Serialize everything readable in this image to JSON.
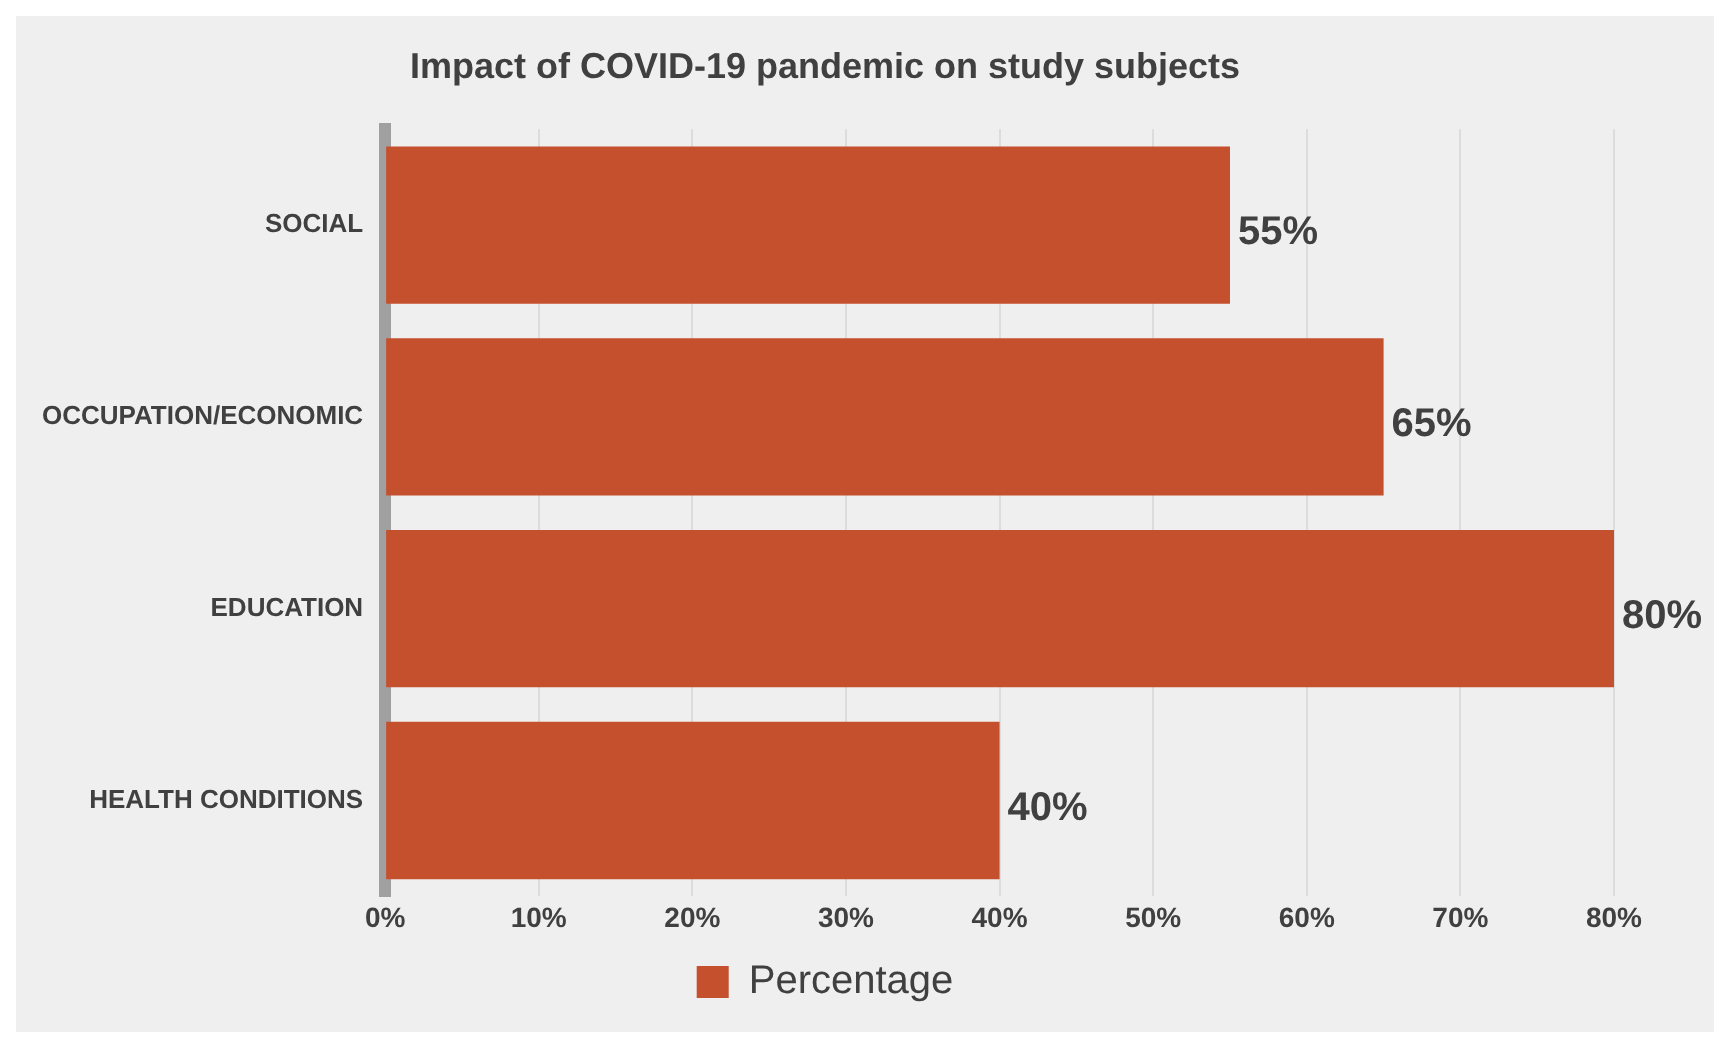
{
  "chart_data": {
    "type": "bar",
    "title": "Impact of COVID-19 pandemic on study subjects",
    "orientation": "horizontal",
    "categories": [
      "SOCIAL",
      "OCCUPATION/ECONOMIC",
      "EDUCATION",
      "HEALTH CONDITIONS"
    ],
    "series": [
      {
        "name": "Percentage",
        "color": "#c4502e",
        "values": [
          55,
          65,
          80,
          40
        ],
        "value_labels": [
          "55%",
          "65%",
          "80%",
          "40%"
        ]
      }
    ],
    "xlim": [
      0,
      80
    ],
    "xticks": [
      {
        "value": 0,
        "label": "0%"
      },
      {
        "value": 10,
        "label": "10%"
      },
      {
        "value": 20,
        "label": "20%"
      },
      {
        "value": 30,
        "label": "30%"
      },
      {
        "value": 40,
        "label": "40%"
      },
      {
        "value": 50,
        "label": "50%"
      },
      {
        "value": 60,
        "label": "60%"
      },
      {
        "value": 70,
        "label": "70%"
      },
      {
        "value": 80,
        "label": "80%"
      }
    ],
    "grid": "x",
    "legend": "bottom"
  }
}
